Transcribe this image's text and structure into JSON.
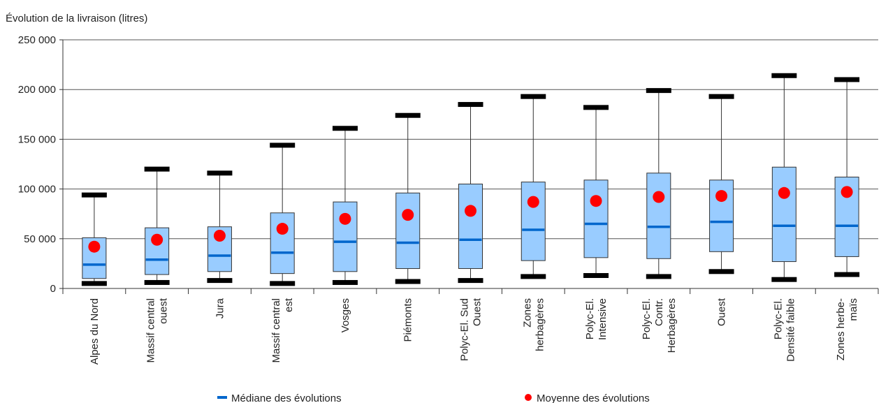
{
  "chart_data": {
    "type": "boxplot",
    "title": "Évolution de la livraison (litres)",
    "ylim": [
      0,
      250000
    ],
    "yticks": [
      0,
      50000,
      100000,
      150000,
      200000,
      250000
    ],
    "ytick_labels": [
      "0",
      "50 000",
      "100 000",
      "150 000",
      "200 000",
      "250 000"
    ],
    "grid": true,
    "legend_position": "bottom",
    "colors": {
      "box_fill": "#99ccff",
      "box_stroke": "#333333",
      "median": "#0066cc",
      "mean": "#ff0000",
      "whisker_cap": "#000000"
    },
    "legend": {
      "median_label": "Médiane des évolutions",
      "mean_label": "Moyenne des évolutions"
    },
    "categories": [
      {
        "label": [
          "Alpes du Nord"
        ],
        "min": 5000,
        "q1": 10000,
        "median": 24000,
        "q3": 51000,
        "max": 94000,
        "mean": 42000
      },
      {
        "label": [
          "Massif central",
          "ouest"
        ],
        "min": 6000,
        "q1": 14000,
        "median": 29000,
        "q3": 61000,
        "max": 120000,
        "mean": 49000
      },
      {
        "label": [
          "Jura"
        ],
        "min": 8000,
        "q1": 17000,
        "median": 33000,
        "q3": 62000,
        "max": 116000,
        "mean": 53000
      },
      {
        "label": [
          "Massif central",
          "est"
        ],
        "min": 5000,
        "q1": 15000,
        "median": 36000,
        "q3": 76000,
        "max": 144000,
        "mean": 60000
      },
      {
        "label": [
          "Vosges"
        ],
        "min": 6000,
        "q1": 17000,
        "median": 47000,
        "q3": 87000,
        "max": 161000,
        "mean": 70000
      },
      {
        "label": [
          "Piémonts"
        ],
        "min": 7000,
        "q1": 20000,
        "median": 46000,
        "q3": 96000,
        "max": 174000,
        "mean": 74000
      },
      {
        "label": [
          "Polyc-El. Sud",
          "Ouest"
        ],
        "min": 8000,
        "q1": 20000,
        "median": 49000,
        "q3": 105000,
        "max": 185000,
        "mean": 78000
      },
      {
        "label": [
          "Zones",
          "herbagères"
        ],
        "min": 12000,
        "q1": 28000,
        "median": 59000,
        "q3": 107000,
        "max": 193000,
        "mean": 87000
      },
      {
        "label": [
          "Polyc-El.",
          "Intensive"
        ],
        "min": 13000,
        "q1": 31000,
        "median": 65000,
        "q3": 109000,
        "max": 182000,
        "mean": 88000
      },
      {
        "label": [
          "Polyc-El.",
          "Contr.",
          "Herbagères"
        ],
        "min": 12000,
        "q1": 30000,
        "median": 62000,
        "q3": 116000,
        "max": 199000,
        "mean": 92000
      },
      {
        "label": [
          "Ouest"
        ],
        "min": 17000,
        "q1": 37000,
        "median": 67000,
        "q3": 109000,
        "max": 193000,
        "mean": 93000
      },
      {
        "label": [
          "Polyc-El.",
          "Densité faible"
        ],
        "min": 9000,
        "q1": 27000,
        "median": 63000,
        "q3": 122000,
        "max": 214000,
        "mean": 96000
      },
      {
        "label": [
          "Zones herbe-",
          "maïs"
        ],
        "min": 14000,
        "q1": 32000,
        "median": 63000,
        "q3": 112000,
        "max": 210000,
        "mean": 97000
      }
    ]
  }
}
